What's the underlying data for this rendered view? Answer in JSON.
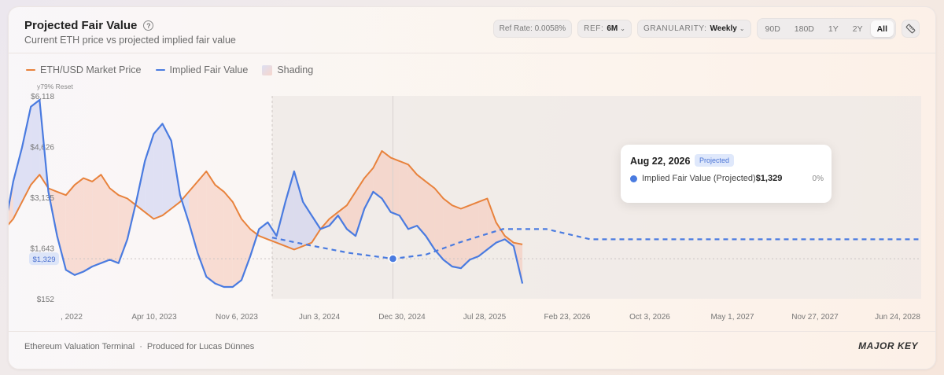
{
  "header": {
    "title": "Projected Fair Value",
    "subtitle": "Current ETH price vs projected implied fair value",
    "help_icon": "help-circle-icon"
  },
  "controls": {
    "ref_rate": "Ref Rate: 0.0058%",
    "ref_label": "REF:",
    "ref_value": "6M",
    "granularity_label": "GRANULARITY:",
    "granularity_value": "Weekly",
    "ranges": [
      "90D",
      "180D",
      "1Y",
      "2Y",
      "All"
    ],
    "active_range": "All",
    "ruler_icon": "ruler-icon"
  },
  "legend": {
    "market": "ETH/USD Market Price",
    "fair": "Implied Fair Value",
    "shading": "Shading"
  },
  "chart_data": {
    "type": "line",
    "y_axis_caption": "y79% Reset",
    "yticks": [
      "$6,118",
      "$4,626",
      "$3,135",
      "$1,643",
      "$152"
    ],
    "ytick_values": [
      6118,
      4626,
      3135,
      1643,
      152
    ],
    "current_value_label": "$1,329",
    "current_value": 1329,
    "xticks": [
      ", 2022",
      "Apr 10, 2023",
      "Nov 6, 2023",
      "Jun 3, 2024",
      "Dec 30, 2024",
      "Jul 28, 2025",
      "Feb 23, 2026",
      "Oct 3, 2026",
      "May 1, 2027",
      "Nov 27, 2027",
      "Jun 24, 2028"
    ],
    "ylim": [
      152,
      6118
    ],
    "x_index_range": [
      0,
      78
    ],
    "today_index": 19,
    "series": [
      {
        "name": "ETH/USD Market Price",
        "color": "#e8823c",
        "points": [
          [
            -31.1,
            1500
          ],
          [
            -30.3,
            1450
          ],
          [
            -29.5,
            1400
          ],
          [
            -28.7,
            1200
          ],
          [
            -27.9,
            1150
          ],
          [
            -27.1,
            1100
          ],
          [
            -26.3,
            1200
          ],
          [
            -25.5,
            1550
          ],
          [
            -24.7,
            1500
          ],
          [
            -23.8,
            1600
          ],
          [
            -23.0,
            1650
          ],
          [
            -22.2,
            1750
          ],
          [
            -21.4,
            1800
          ],
          [
            -20.6,
            1900
          ],
          [
            -19.8,
            1850
          ],
          [
            -19.0,
            1900
          ],
          [
            -18.2,
            1850
          ],
          [
            -17.4,
            1700
          ],
          [
            -16.6,
            1750
          ],
          [
            -15.8,
            1800
          ],
          [
            -15.0,
            1750
          ],
          [
            -14.2,
            1700
          ],
          [
            -13.4,
            1550
          ],
          [
            -12.6,
            1500
          ],
          [
            -11.8,
            1600
          ],
          [
            -11.0,
            1700
          ],
          [
            -10.2,
            1900
          ],
          [
            -9.4,
            2100
          ],
          [
            -8.6,
            2200
          ],
          [
            -7.8,
            2400
          ],
          [
            -7.0,
            2100
          ],
          [
            -6.2,
            2000
          ],
          [
            -5.4,
            2200
          ],
          [
            -4.6,
            2500
          ],
          [
            -3.8,
            3000
          ],
          [
            -3.0,
            3500
          ],
          [
            -2.2,
            3800
          ],
          [
            -1.4,
            3400
          ],
          [
            -0.6,
            3300
          ],
          [
            0.2,
            3200
          ],
          [
            1.0,
            3500
          ],
          [
            1.8,
            3700
          ],
          [
            2.6,
            3600
          ],
          [
            3.4,
            3800
          ],
          [
            4.2,
            3400
          ],
          [
            5.0,
            3200
          ],
          [
            5.8,
            3100
          ],
          [
            6.6,
            2900
          ],
          [
            7.4,
            2700
          ],
          [
            8.2,
            2500
          ],
          [
            9.0,
            2600
          ],
          [
            9.8,
            2800
          ],
          [
            10.6,
            3000
          ],
          [
            11.4,
            3300
          ],
          [
            12.2,
            3600
          ],
          [
            13.0,
            3900
          ],
          [
            13.8,
            3500
          ],
          [
            14.6,
            3300
          ],
          [
            15.4,
            3000
          ],
          [
            16.2,
            2500
          ],
          [
            17.0,
            2200
          ],
          [
            17.8,
            2000
          ],
          [
            18.6,
            1900
          ],
          [
            19.4,
            1800
          ],
          [
            20.2,
            1700
          ],
          [
            21.0,
            1600
          ],
          [
            21.8,
            1700
          ],
          [
            22.6,
            1800
          ],
          [
            23.4,
            2200
          ],
          [
            24.2,
            2500
          ],
          [
            25.0,
            2700
          ],
          [
            25.8,
            2900
          ],
          [
            26.6,
            3300
          ],
          [
            27.4,
            3700
          ],
          [
            28.2,
            4000
          ],
          [
            29.0,
            4500
          ],
          [
            29.8,
            4300
          ],
          [
            30.6,
            4200
          ],
          [
            31.4,
            4100
          ],
          [
            32.2,
            3800
          ],
          [
            33.0,
            3600
          ],
          [
            33.8,
            3400
          ],
          [
            34.6,
            3100
          ],
          [
            35.4,
            2900
          ],
          [
            36.2,
            2800
          ],
          [
            37.0,
            2900
          ],
          [
            37.8,
            3000
          ],
          [
            38.6,
            3100
          ],
          [
            39.4,
            2400
          ],
          [
            40.2,
            2000
          ],
          [
            41.0,
            1800
          ],
          [
            41.8,
            1750
          ]
        ]
      },
      {
        "name": "Implied Fair Value",
        "color": "#4a7be0",
        "points": [
          [
            -31.1,
            1400
          ],
          [
            -30.3,
            1300
          ],
          [
            -29.5,
            1250
          ],
          [
            -28.7,
            1300
          ],
          [
            -27.9,
            1900
          ],
          [
            -27.1,
            1350
          ],
          [
            -26.3,
            1100
          ],
          [
            -25.5,
            1050
          ],
          [
            -24.7,
            1400
          ],
          [
            -23.8,
            1600
          ],
          [
            -23.0,
            1900
          ],
          [
            -22.2,
            2400
          ],
          [
            -21.4,
            2700
          ],
          [
            -20.6,
            2800
          ],
          [
            -19.8,
            3200
          ],
          [
            -19.0,
            3400
          ],
          [
            -18.2,
            5200
          ],
          [
            -17.4,
            5000
          ],
          [
            -16.6,
            1600
          ],
          [
            -15.8,
            1500
          ],
          [
            -15.0,
            1400
          ],
          [
            -14.2,
            1300
          ],
          [
            -13.4,
            1000
          ],
          [
            -12.6,
            850
          ],
          [
            -11.8,
            800
          ],
          [
            -11.0,
            800
          ],
          [
            -10.2,
            1100
          ],
          [
            -9.4,
            2800
          ],
          [
            -8.6,
            3600
          ],
          [
            -7.8,
            3800
          ],
          [
            -7.0,
            2800
          ],
          [
            -6.2,
            1800
          ],
          [
            -5.4,
            2200
          ],
          [
            -4.6,
            3600
          ],
          [
            -3.8,
            4600
          ],
          [
            -3.0,
            5800
          ],
          [
            -2.2,
            6000
          ],
          [
            -1.4,
            3300
          ],
          [
            -0.6,
            2000
          ],
          [
            0.2,
            1000
          ],
          [
            1.0,
            850
          ],
          [
            1.8,
            950
          ],
          [
            2.6,
            1100
          ],
          [
            3.4,
            1200
          ],
          [
            4.2,
            1300
          ],
          [
            5.0,
            1200
          ],
          [
            5.8,
            1900
          ],
          [
            6.6,
            3000
          ],
          [
            7.4,
            4200
          ],
          [
            8.2,
            5000
          ],
          [
            9.0,
            5300
          ],
          [
            9.8,
            4800
          ],
          [
            10.6,
            3200
          ],
          [
            11.4,
            2400
          ],
          [
            12.2,
            1500
          ],
          [
            13.0,
            800
          ],
          [
            13.8,
            600
          ],
          [
            14.6,
            500
          ],
          [
            15.4,
            500
          ],
          [
            16.2,
            700
          ],
          [
            17.0,
            1400
          ],
          [
            17.8,
            2200
          ],
          [
            18.6,
            2400
          ],
          [
            19.4,
            2000
          ],
          [
            20.2,
            3000
          ],
          [
            21.0,
            3900
          ],
          [
            21.8,
            3000
          ],
          [
            22.6,
            2600
          ],
          [
            23.4,
            2200
          ],
          [
            24.2,
            2300
          ],
          [
            25.0,
            2600
          ],
          [
            25.8,
            2200
          ],
          [
            26.6,
            2000
          ],
          [
            27.4,
            2800
          ],
          [
            28.2,
            3300
          ],
          [
            29.0,
            3100
          ],
          [
            29.8,
            2700
          ],
          [
            30.6,
            2600
          ],
          [
            31.4,
            2200
          ],
          [
            32.2,
            2300
          ],
          [
            33.0,
            2000
          ],
          [
            33.8,
            1600
          ],
          [
            34.6,
            1300
          ],
          [
            35.4,
            1100
          ],
          [
            36.2,
            1050
          ],
          [
            37.0,
            1300
          ],
          [
            37.8,
            1400
          ],
          [
            38.6,
            1600
          ],
          [
            39.4,
            1800
          ],
          [
            40.2,
            1900
          ],
          [
            41.0,
            1700
          ],
          [
            41.8,
            600
          ]
        ]
      },
      {
        "name": "Implied Fair Value (Projected)",
        "color": "#4a7be0",
        "dashed": true,
        "points": [
          [
            19,
            1950
          ],
          [
            22,
            1750
          ],
          [
            26,
            1500
          ],
          [
            30,
            1329
          ],
          [
            33,
            1450
          ],
          [
            36,
            1800
          ],
          [
            40,
            2200
          ],
          [
            44,
            2200
          ],
          [
            48,
            1900
          ],
          [
            55,
            1900
          ],
          [
            65,
            1900
          ],
          [
            78,
            1900
          ]
        ]
      }
    ],
    "hover": {
      "x": 30,
      "y": 1329
    }
  },
  "tooltip": {
    "date": "Aug 22, 2026",
    "badge": "Projected",
    "series_label": "Implied Fair Value (Projected)",
    "value": "$1,329",
    "pct": "0%"
  },
  "footer": {
    "left_title": "Ethereum Valuation Terminal",
    "separator": "·",
    "left_sub": "Produced for Lucas Dünnes",
    "brand": "MAJOR KEY"
  }
}
